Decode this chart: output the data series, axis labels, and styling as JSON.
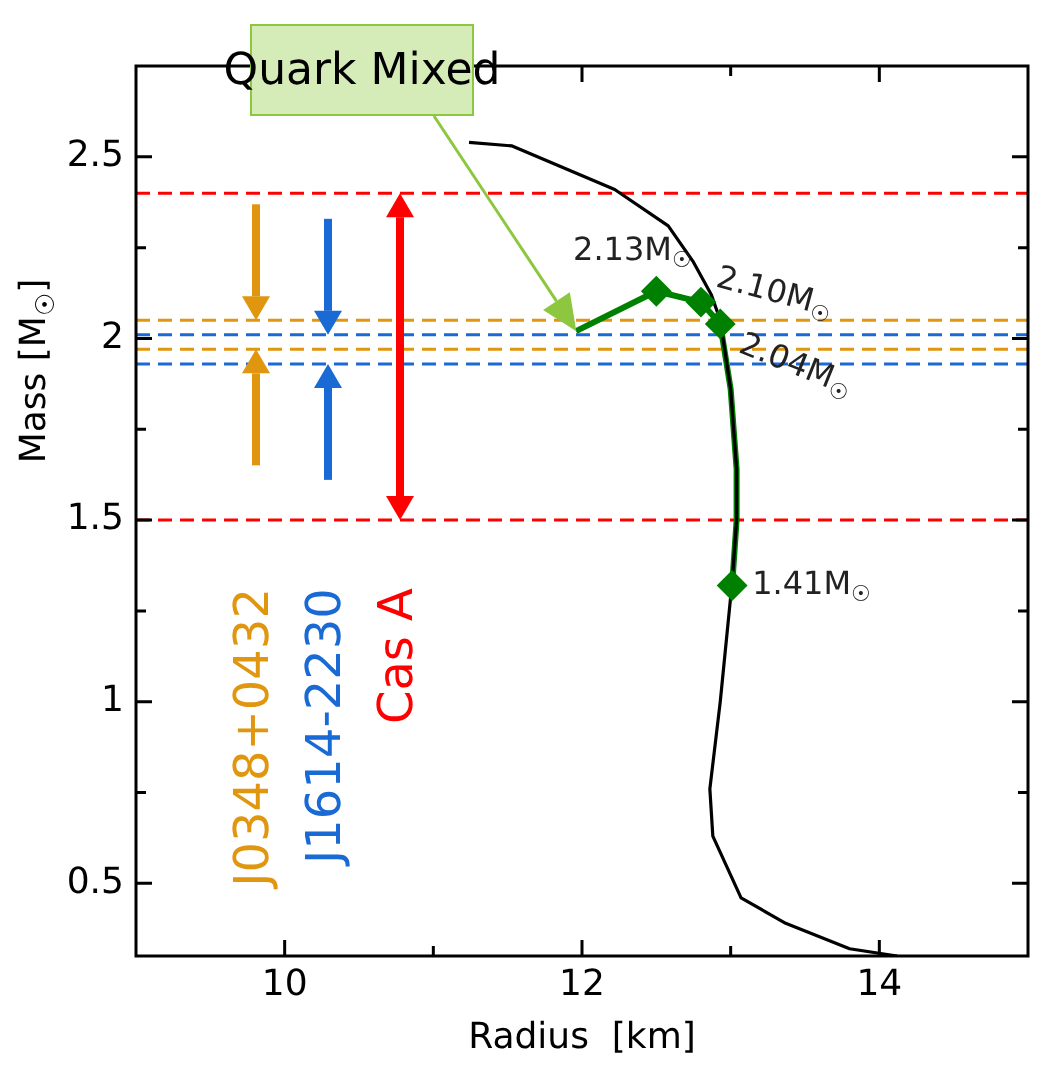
{
  "chart_data": {
    "type": "line",
    "xlabel": "Radius  [km]",
    "ylabel": "Mass [M$_{☉}$]",
    "xlim": [
      9,
      15
    ],
    "ylim": [
      0.3,
      2.75
    ],
    "xticks": [
      10,
      {
        "value": 11,
        "label": null
      },
      12,
      {
        "value": 13,
        "label": null
      },
      14
    ],
    "yticks": [
      0.5,
      {
        "value": 0.75,
        "label": null
      },
      1,
      {
        "value": 1.25,
        "label": null
      },
      1.5,
      {
        "value": 1.75,
        "label": null
      },
      2,
      {
        "value": 2.25,
        "label": null
      },
      2.5
    ],
    "grid": false,
    "legend": false,
    "series": [
      {
        "color": "#008000",
        "marker": "none",
        "x": [
          11.96,
          12.5,
          12.8,
          12.93,
          13.0,
          13.04,
          13.04,
          13.01
        ],
        "values": [
          2.02,
          2.13,
          2.1,
          2.04,
          1.86,
          1.64,
          1.5,
          1.32
        ]
      },
      {
        "color": "#000000",
        "marker": "none",
        "x": [
          11.24,
          11.53,
          12.22,
          12.58,
          12.75,
          12.87,
          12.93,
          13.0,
          13.04,
          13.04,
          13.01,
          12.93,
          12.86,
          12.88,
          13.07,
          13.37,
          13.8,
          14.12
        ],
        "values": [
          2.54,
          2.53,
          2.41,
          2.31,
          2.21,
          2.12,
          2.05,
          1.86,
          1.64,
          1.5,
          1.33,
          1.0,
          0.76,
          0.63,
          0.46,
          0.39,
          0.32,
          0.3
        ]
      },
      {
        "type": "scatter",
        "color": "#008000",
        "marker": "diamond",
        "x": [
          12.5,
          12.8,
          12.93,
          13.01
        ],
        "values": [
          2.13,
          2.1,
          2.04,
          1.32
        ]
      }
    ],
    "ref_lines": [
      {
        "axis": "y",
        "value": 2.05,
        "label": null,
        "color": "#e0960f",
        "line_style": "dashed"
      },
      {
        "axis": "y",
        "value": 1.97,
        "label": "J0348+0432",
        "color": "#e0960f",
        "line_style": "dashed"
      },
      {
        "axis": "y",
        "value": 2.01,
        "label": null,
        "color": "#1a6ad6",
        "line_style": "dashed"
      },
      {
        "axis": "y",
        "value": 1.93,
        "label": "J1614-2230",
        "color": "#1a6ad6",
        "line_style": "dashed"
      },
      {
        "axis": "y",
        "value": 2.4,
        "label": null,
        "color": "#ff0000",
        "line_style": "dashed"
      },
      {
        "axis": "y",
        "value": 1.5,
        "label": "Cas A",
        "color": "#ff0000",
        "line_style": "dashed"
      }
    ],
    "annotations": [
      "Quark Mixed",
      {
        "text": "2.13M$_{☉}$",
        "x": 12.5,
        "y": 2.13
      },
      {
        "text": "2.10M$_{☉}$",
        "x": 12.8,
        "y": 2.1
      },
      {
        "text": "2.04M$_{☉}$",
        "x": 12.93,
        "y": 2.04
      },
      {
        "text": "1.41M$_{☉}$",
        "x": 13.01,
        "y": 1.32
      }
    ]
  }
}
